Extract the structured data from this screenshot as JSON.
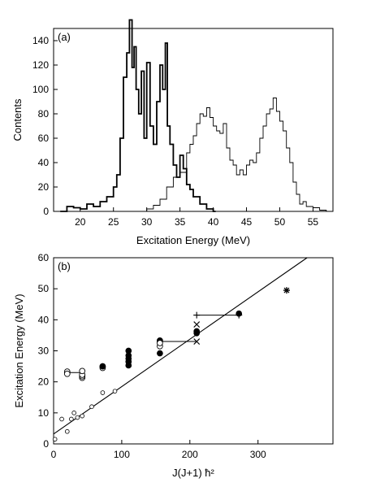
{
  "chart_data": [
    {
      "type": "histogram",
      "panel_label": "(a)",
      "xlabel": "Excitation Energy (MeV)",
      "ylabel": "Contents",
      "xlim": [
        16,
        58
      ],
      "ylim": [
        0,
        150
      ],
      "xticks": [
        20,
        25,
        30,
        35,
        40,
        45,
        50,
        55
      ],
      "yticks": [
        0,
        20,
        40,
        60,
        80,
        100,
        120,
        140
      ],
      "grid": false,
      "series": [
        {
          "style": "bold",
          "x": [
            17.0,
            18.0,
            19.0,
            20.0,
            21.0,
            22.0,
            23.0,
            24.0,
            25.0,
            25.5,
            26.0,
            26.5,
            27.0,
            27.4,
            27.8,
            28.1,
            28.4,
            28.8,
            29.2,
            29.6,
            30.0,
            30.5,
            31.0,
            31.5,
            32.0,
            32.4,
            32.8,
            33.1,
            33.5,
            34.0,
            34.5,
            35.0,
            35.5,
            36.0,
            36.5,
            37.0,
            38.0,
            39.0,
            40.0
          ],
          "y": [
            0,
            4,
            3,
            2,
            6,
            4,
            8,
            12,
            20,
            30,
            60,
            110,
            130,
            157,
            118,
            135,
            100,
            80,
            115,
            60,
            122,
            70,
            55,
            90,
            120,
            100,
            138,
            70,
            55,
            38,
            28,
            46,
            35,
            22,
            18,
            12,
            6,
            2,
            0
          ]
        },
        {
          "style": "thin",
          "x": [
            28.0,
            30.0,
            31.0,
            32.0,
            33.0,
            34.0,
            35.0,
            36.0,
            36.5,
            37.0,
            37.5,
            38.0,
            38.5,
            39.0,
            39.5,
            40.0,
            40.5,
            41.0,
            41.5,
            42.0,
            42.5,
            43.0,
            43.5,
            44.0,
            44.5,
            45.0,
            45.5,
            46.0,
            46.5,
            47.0,
            47.5,
            48.0,
            48.5,
            49.0,
            49.5,
            50.0,
            50.5,
            51.0,
            51.5,
            52.0,
            52.5,
            53.0,
            53.5,
            54.0,
            55.0,
            56.0,
            57.0
          ],
          "y": [
            0,
            2,
            5,
            10,
            20,
            28,
            32,
            48,
            55,
            62,
            72,
            80,
            78,
            85,
            77,
            70,
            66,
            64,
            72,
            52,
            42,
            38,
            30,
            34,
            30,
            38,
            42,
            40,
            48,
            60,
            70,
            80,
            84,
            93,
            82,
            74,
            66,
            52,
            40,
            24,
            14,
            6,
            8,
            4,
            3,
            1,
            0
          ]
        }
      ]
    },
    {
      "type": "scatter",
      "panel_label": "(b)",
      "xlabel": "J(J+1) ħ²",
      "ylabel": "Excitation Energy (MeV)",
      "xlim": [
        0,
        410
      ],
      "ylim": [
        0,
        60
      ],
      "xticks": [
        0,
        100,
        200,
        300
      ],
      "yticks": [
        0,
        10,
        20,
        30,
        40,
        50,
        60
      ],
      "grid": false,
      "fit_line": {
        "x": [
          0,
          372
        ],
        "y": [
          3.2,
          60
        ]
      },
      "series": [
        {
          "marker": "open-small",
          "x": [
            2,
            12,
            20,
            26,
            30,
            35,
            42,
            56,
            72,
            90
          ],
          "y": [
            1.5,
            8,
            4,
            8,
            10,
            8.5,
            9,
            12,
            16.5,
            17
          ]
        },
        {
          "marker": "open",
          "x": [
            20,
            20,
            20,
            42,
            42,
            42,
            42,
            72,
            72
          ],
          "y": [
            23,
            23.3,
            22.6,
            21.3,
            21.8,
            22.3,
            23.5,
            24.5,
            25
          ]
        },
        {
          "marker": "filled",
          "x": [
            72,
            110,
            110,
            110,
            110,
            110,
            156,
            156,
            156,
            210,
            210,
            272
          ],
          "y": [
            25,
            25.3,
            26.5,
            27.5,
            28.5,
            30,
            29.2,
            33,
            33.3,
            35.7,
            36.3,
            42
          ]
        },
        {
          "marker": "open",
          "x": [
            156,
            156
          ],
          "y": [
            31.5,
            32.5
          ]
        },
        {
          "marker": "plus",
          "x": [
            210,
            272
          ],
          "y": [
            41.5,
            41.5
          ]
        },
        {
          "marker": "cross",
          "x": [
            210,
            210
          ],
          "y": [
            38.5,
            33
          ]
        },
        {
          "marker": "star",
          "x": [
            342
          ],
          "y": [
            49.5
          ]
        }
      ],
      "bars": [
        {
          "x1": 20,
          "x2": 42,
          "y": 23
        },
        {
          "x1": 156,
          "x2": 210,
          "y": 33
        },
        {
          "x1": 210,
          "x2": 272,
          "y": 41.5
        }
      ]
    }
  ]
}
